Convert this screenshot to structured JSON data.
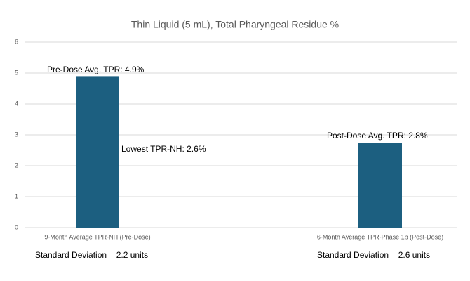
{
  "chart_data": {
    "type": "bar",
    "title": "Thin Liquid (5 mL), Total Pharyngeal Residue %",
    "categories": [
      "9-Month Average TPR-NH (Pre-Dose)",
      "6-Month Average TPR-Phase 1b (Post-Dose)"
    ],
    "values": [
      4.9,
      2.75
    ],
    "color": "#1c5f80",
    "ylim": [
      0,
      6
    ],
    "yticks": [
      0,
      1,
      2,
      3,
      4,
      5,
      6
    ],
    "grid": true,
    "annotations": [
      "Pre-Dose Avg. TPR: 4.9%",
      "Lowest TPR-NH: 2.6%",
      "Post-Dose Avg. TPR: 2.8%",
      "Standard Deviation = 2.2 units",
      "Standard Deviation = 2.6 units"
    ]
  }
}
